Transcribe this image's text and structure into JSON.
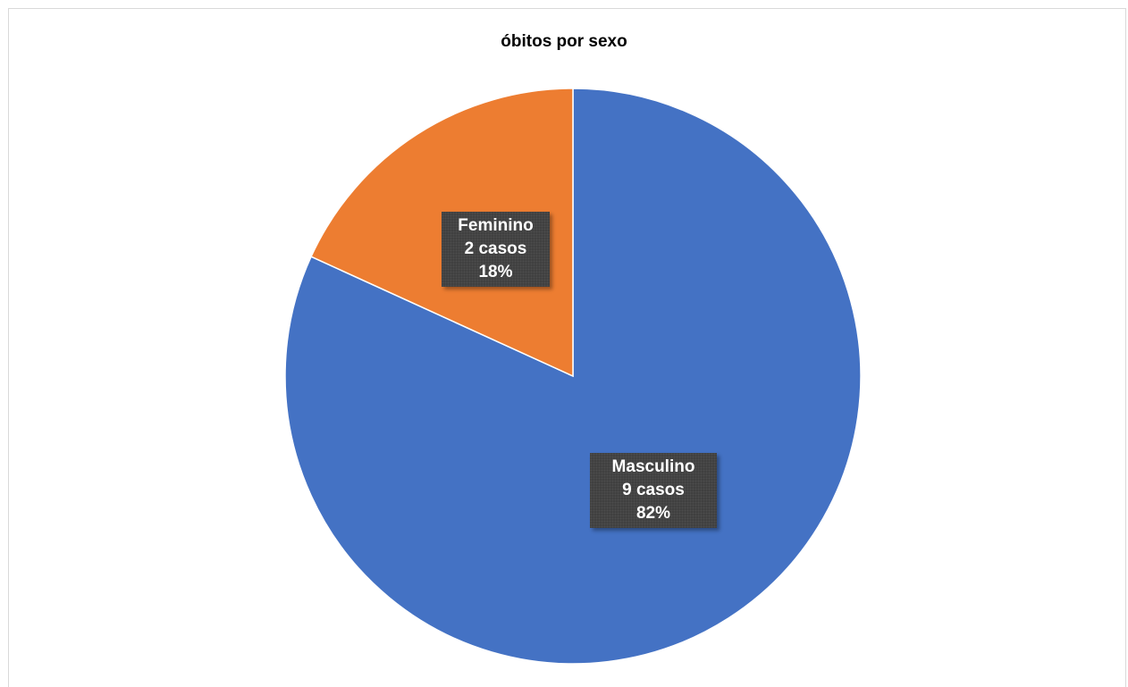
{
  "chart_data": {
    "type": "pie",
    "title": "óbitos por sexo",
    "slices": [
      {
        "name": "Masculino",
        "value": 9,
        "count_label": "9 casos",
        "percent_label": "82%",
        "color": "#4472C4"
      },
      {
        "name": "Feminino",
        "value": 2,
        "count_label": "2 casos",
        "percent_label": "18%",
        "color": "#ED7D31"
      }
    ],
    "legend": "none",
    "start_angle": "12 o'clock",
    "direction": "clockwise"
  }
}
